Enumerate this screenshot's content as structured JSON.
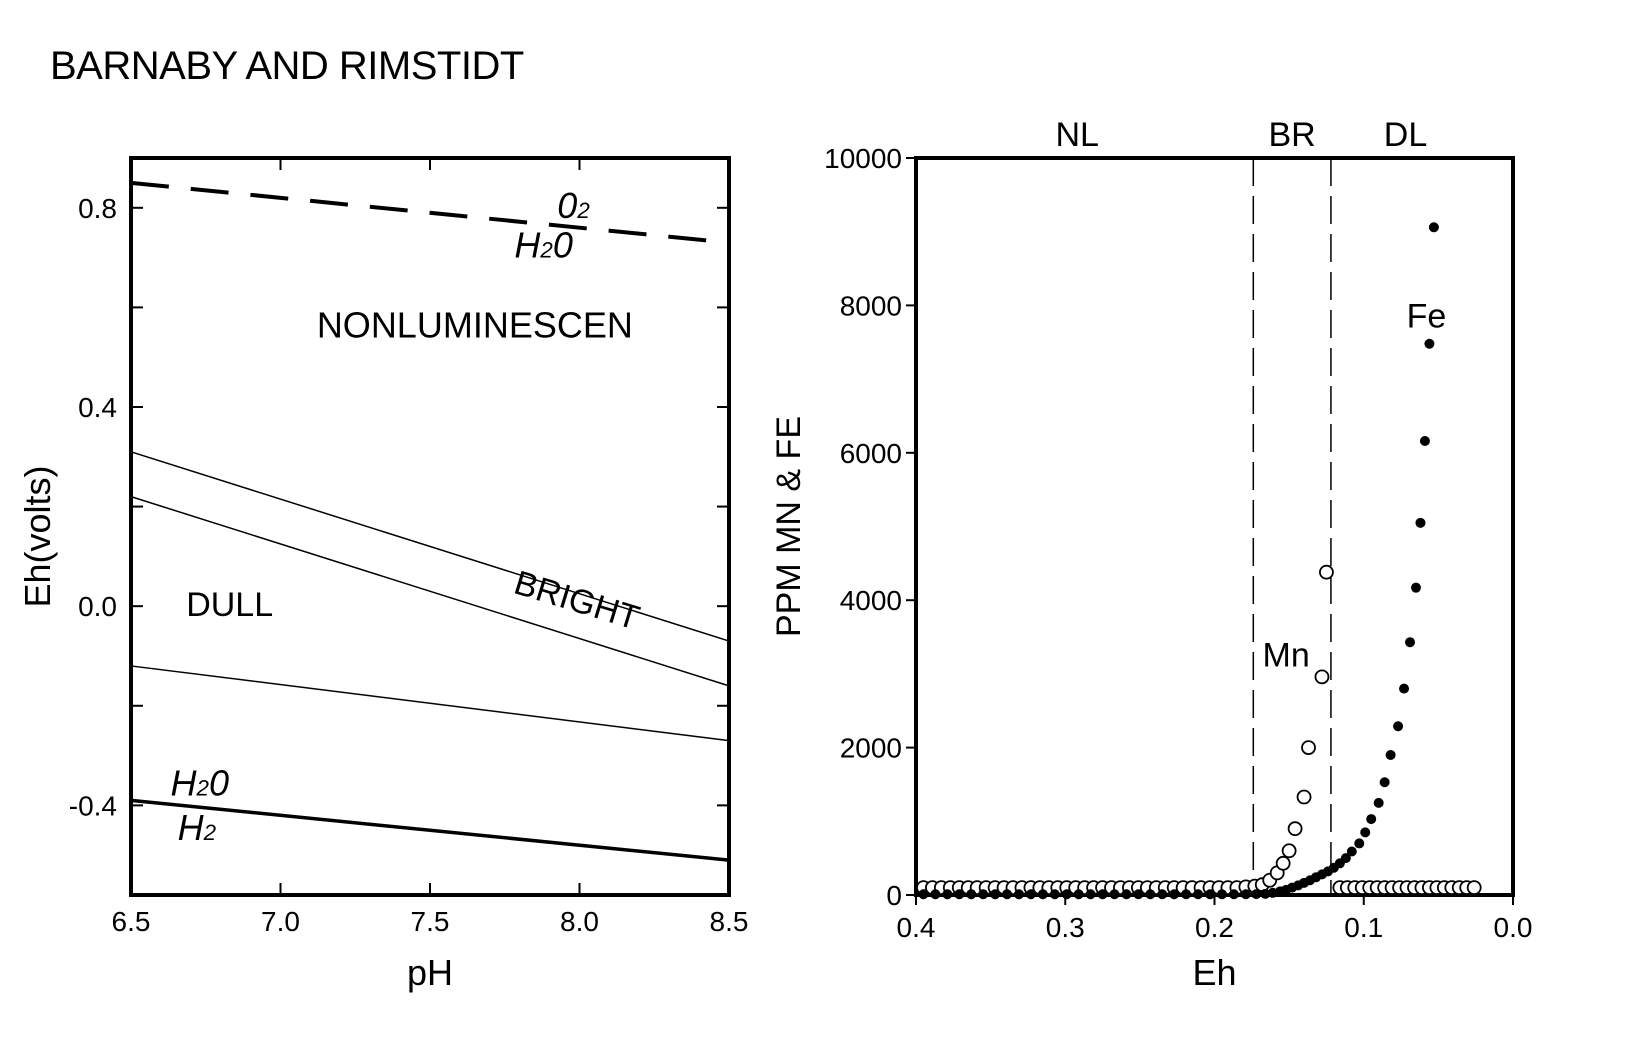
{
  "figure_title": "BARNABY AND RIMSTIDT",
  "chart_data": [
    {
      "type": "line",
      "title": "",
      "xlabel": "pH",
      "ylabel": "Eh(volts)",
      "xlim": [
        6.5,
        8.5
      ],
      "ylim": [
        -0.58,
        0.9
      ],
      "xticks": [
        6.5,
        7.0,
        7.5,
        8.0,
        8.5
      ],
      "xtick_labels": [
        "6.5",
        "7.0",
        "7.5",
        "8.0",
        "8.5"
      ],
      "yticks": [
        -0.4,
        0.0,
        0.4,
        0.8
      ],
      "ytick_labels": [
        "-0.4",
        "0.0",
        "0.4",
        "0.8"
      ],
      "series": [
        {
          "style": "dashed",
          "x": [
            6.5,
            8.5
          ],
          "y": [
            0.85,
            0.73
          ]
        },
        {
          "style": "thin",
          "x": [
            6.5,
            8.5
          ],
          "y": [
            0.31,
            -0.07
          ]
        },
        {
          "style": "thin",
          "x": [
            6.5,
            8.5
          ],
          "y": [
            0.22,
            -0.16
          ]
        },
        {
          "style": "thin",
          "x": [
            6.5,
            8.5
          ],
          "y": [
            -0.12,
            -0.27
          ]
        },
        {
          "style": "thick",
          "x": [
            6.5,
            8.5
          ],
          "y": [
            -0.39,
            -0.51
          ]
        }
      ],
      "annotations": [
        {
          "text": "0",
          "sub": "2",
          "x": 7.98,
          "y": 0.78,
          "italic": true,
          "rotate": 0
        },
        {
          "text": "H",
          "sub": "2",
          "tail": "0",
          "x": 7.88,
          "y": 0.7,
          "italic": true,
          "rotate": 0
        },
        {
          "text": "NONLUMINESCEN",
          "x": 7.65,
          "y": 0.54,
          "rotate": 0,
          "size": 36
        },
        {
          "text": "BRIGHT",
          "x": 7.98,
          "y": -0.01,
          "rotate": 17,
          "size": 34
        },
        {
          "text": "DULL",
          "x": 6.83,
          "y": -0.02,
          "rotate": 0,
          "size": 34
        },
        {
          "text": "H",
          "sub": "2",
          "tail": "0",
          "x": 6.73,
          "y": -0.38,
          "italic": true,
          "rotate": 0
        },
        {
          "text": "H",
          "sub": "2",
          "x": 6.72,
          "y": -0.47,
          "italic": true,
          "rotate": 0
        }
      ]
    },
    {
      "type": "scatter",
      "title": "",
      "xlabel": "Eh",
      "ylabel": "PPM  MN  &  FE",
      "xlim": [
        0.4,
        0.0
      ],
      "ylim": [
        0,
        10000
      ],
      "xticks": [
        0.4,
        0.3,
        0.2,
        0.1,
        0.0
      ],
      "xtick_labels": [
        "0.4",
        "0.3",
        "0.2",
        "0.1",
        "0.0"
      ],
      "yticks": [
        0,
        2000,
        4000,
        6000,
        8000,
        10000
      ],
      "ytick_labels": [
        "0",
        "2000",
        "4000",
        "6000",
        "8000",
        "10000"
      ],
      "region_labels": [
        {
          "text": "NL",
          "x": 0.292
        },
        {
          "text": "BR",
          "x": 0.148
        },
        {
          "text": "DL",
          "x": 0.072
        }
      ],
      "boundaries": [
        0.174,
        0.122
      ],
      "series": [
        {
          "name": "Mn",
          "marker": "open",
          "points": [
            [
              0.395,
              100
            ],
            [
              0.389,
              100
            ],
            [
              0.383,
              100
            ],
            [
              0.377,
              100
            ],
            [
              0.371,
              100
            ],
            [
              0.365,
              100
            ],
            [
              0.359,
              100
            ],
            [
              0.353,
              100
            ],
            [
              0.347,
              100
            ],
            [
              0.341,
              100
            ],
            [
              0.335,
              100
            ],
            [
              0.329,
              100
            ],
            [
              0.323,
              100
            ],
            [
              0.317,
              100
            ],
            [
              0.311,
              100
            ],
            [
              0.305,
              100
            ],
            [
              0.299,
              100
            ],
            [
              0.293,
              100
            ],
            [
              0.287,
              100
            ],
            [
              0.281,
              100
            ],
            [
              0.275,
              100
            ],
            [
              0.269,
              100
            ],
            [
              0.263,
              100
            ],
            [
              0.257,
              100
            ],
            [
              0.251,
              100
            ],
            [
              0.245,
              100
            ],
            [
              0.239,
              100
            ],
            [
              0.233,
              100
            ],
            [
              0.227,
              100
            ],
            [
              0.221,
              100
            ],
            [
              0.215,
              100
            ],
            [
              0.209,
              100
            ],
            [
              0.203,
              100
            ],
            [
              0.197,
              100
            ],
            [
              0.191,
              100
            ],
            [
              0.185,
              100
            ],
            [
              0.179,
              110
            ],
            [
              0.173,
              120
            ],
            [
              0.168,
              140
            ],
            [
              0.163,
              200
            ],
            [
              0.158,
              300
            ],
            [
              0.154,
              430
            ],
            [
              0.15,
              600
            ],
            [
              0.146,
              900
            ],
            [
              0.14,
              1330
            ],
            [
              0.137,
              2000
            ],
            [
              0.128,
              2960
            ],
            [
              0.125,
              4380
            ],
            [
              0.116,
              100
            ],
            [
              0.111,
              100
            ],
            [
              0.106,
              100
            ],
            [
              0.101,
              100
            ],
            [
              0.096,
              100
            ],
            [
              0.091,
              100
            ],
            [
              0.086,
              100
            ],
            [
              0.081,
              100
            ],
            [
              0.076,
              100
            ],
            [
              0.071,
              100
            ],
            [
              0.066,
              100
            ],
            [
              0.061,
              100
            ],
            [
              0.056,
              100
            ],
            [
              0.051,
              100
            ],
            [
              0.046,
              100
            ],
            [
              0.041,
              100
            ],
            [
              0.036,
              100
            ],
            [
              0.031,
              100
            ],
            [
              0.026,
              100
            ]
          ]
        },
        {
          "name": "Fe",
          "marker": "filled",
          "points": [
            [
              0.395,
              10
            ],
            [
              0.387,
              10
            ],
            [
              0.379,
              10
            ],
            [
              0.371,
              10
            ],
            [
              0.363,
              10
            ],
            [
              0.355,
              10
            ],
            [
              0.347,
              10
            ],
            [
              0.339,
              10
            ],
            [
              0.331,
              10
            ],
            [
              0.323,
              10
            ],
            [
              0.315,
              10
            ],
            [
              0.307,
              10
            ],
            [
              0.299,
              10
            ],
            [
              0.291,
              10
            ],
            [
              0.283,
              10
            ],
            [
              0.275,
              10
            ],
            [
              0.267,
              10
            ],
            [
              0.259,
              10
            ],
            [
              0.251,
              10
            ],
            [
              0.243,
              10
            ],
            [
              0.235,
              10
            ],
            [
              0.227,
              10
            ],
            [
              0.219,
              10
            ],
            [
              0.211,
              10
            ],
            [
              0.203,
              10
            ],
            [
              0.195,
              10
            ],
            [
              0.187,
              10
            ],
            [
              0.179,
              10
            ],
            [
              0.172,
              12
            ],
            [
              0.166,
              15
            ],
            [
              0.161,
              30
            ],
            [
              0.156,
              50
            ],
            [
              0.152,
              70
            ],
            [
              0.148,
              100
            ],
            [
              0.144,
              130
            ],
            [
              0.14,
              165
            ],
            [
              0.136,
              200
            ],
            [
              0.132,
              240
            ],
            [
              0.128,
              280
            ],
            [
              0.124,
              320
            ],
            [
              0.12,
              370
            ],
            [
              0.116,
              430
            ],
            [
              0.112,
              500
            ],
            [
              0.108,
              590
            ],
            [
              0.103,
              700
            ],
            [
              0.099,
              850
            ],
            [
              0.095,
              1030
            ],
            [
              0.09,
              1250
            ],
            [
              0.086,
              1530
            ],
            [
              0.082,
              1900
            ],
            [
              0.077,
              2290
            ],
            [
              0.073,
              2800
            ],
            [
              0.069,
              3430
            ],
            [
              0.065,
              4170
            ],
            [
              0.062,
              5050
            ],
            [
              0.059,
              6160
            ],
            [
              0.056,
              7480
            ],
            [
              0.053,
              9060
            ]
          ]
        }
      ],
      "annotations": [
        {
          "text": "Fe",
          "x": 0.058,
          "y": 7700,
          "size": 34
        },
        {
          "text": "Mn",
          "x": 0.152,
          "y": 3100,
          "size": 34
        }
      ]
    }
  ]
}
